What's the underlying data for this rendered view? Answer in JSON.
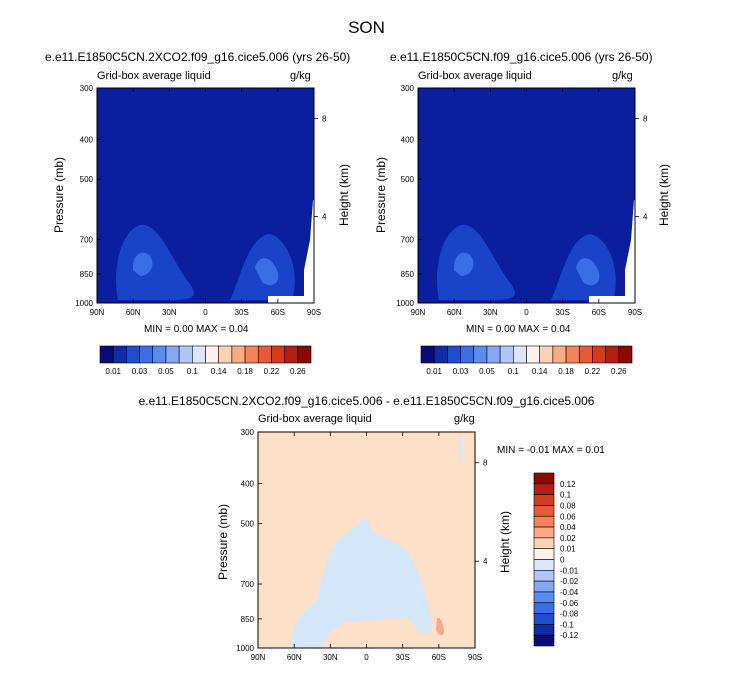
{
  "season": "SON",
  "colors": {
    "base_navy": "#0b1f9e",
    "contour_mid": "#1a44c8",
    "contour_high": "#3a6ee6",
    "diff_pos": "#fde0c8",
    "diff_neg": "#d4e8fa",
    "diff_hot": "#f5a98a"
  },
  "panels": {
    "left": {
      "title": "e.e11.E1850C5CN.2XCO2.f09_g16.cice5.006 (yrs 26-50)",
      "variable": "Grid-box average liquid",
      "units": "g/kg",
      "ylabel": "Pressure (mb)",
      "ylabel2": "Height (km)",
      "stats": "MIN =   0.00  MAX =   0.04"
    },
    "right": {
      "title": "e.e11.E1850C5CN.f09_g16.cice5.006 (yrs 26-50)",
      "variable": "Grid-box average liquid",
      "units": "g/kg",
      "ylabel": "Pressure (mb)",
      "ylabel2": "Height (km)",
      "stats": "MIN =   0.00  MAX =   0.04"
    },
    "diff": {
      "title": "e.e11.E1850C5CN.2XCO2.f09_g16.cice5.006 - e.e11.E1850C5CN.f09_g16.cice5.006",
      "variable": "Grid-box average liquid",
      "units": "g/kg",
      "ylabel": "Pressure (mb)",
      "ylabel2": "Height (km)",
      "stats": "MIN =  -0.01  MAX =   0.01"
    }
  },
  "chart_data": [
    {
      "type": "heatmap",
      "title": "e.e11.E1850C5CN.2XCO2.f09_g16.cice5.006 (yrs 26-50)",
      "subtitle": "Grid-box average liquid",
      "units": "g/kg",
      "xlabel": "",
      "ylabel": "Pressure (mb)",
      "ylabel_right": "Height (km)",
      "x_ticks": [
        "90N",
        "60N",
        "30N",
        "0",
        "30S",
        "60S",
        "90S"
      ],
      "y_ticks": [
        300,
        400,
        500,
        700,
        850,
        1000
      ],
      "y_right_ticks": [
        8,
        4
      ],
      "min": 0.0,
      "max": 0.04,
      "features": [
        {
          "lat": "~55N",
          "pressure": 850,
          "level": "0.03"
        },
        {
          "lat": "~50S",
          "pressure": 850,
          "level": "0.04"
        }
      ]
    },
    {
      "type": "heatmap",
      "title": "e.e11.E1850C5CN.f09_g16.cice5.006 (yrs 26-50)",
      "subtitle": "Grid-box average liquid",
      "units": "g/kg",
      "xlabel": "",
      "ylabel": "Pressure (mb)",
      "ylabel_right": "Height (km)",
      "x_ticks": [
        "90N",
        "60N",
        "30N",
        "0",
        "30S",
        "60S",
        "90S"
      ],
      "y_ticks": [
        300,
        400,
        500,
        700,
        850,
        1000
      ],
      "y_right_ticks": [
        8,
        4
      ],
      "min": 0.0,
      "max": 0.04,
      "features": [
        {
          "lat": "~55N",
          "pressure": 850,
          "level": "0.03"
        },
        {
          "lat": "~50S",
          "pressure": 850,
          "level": "0.04"
        }
      ]
    },
    {
      "type": "heatmap",
      "title": "e.e11.E1850C5CN.2XCO2.f09_g16.cice5.006 - e.e11.E1850C5CN.f09_g16.cice5.006",
      "subtitle": "Grid-box average liquid",
      "units": "g/kg",
      "xlabel": "",
      "ylabel": "Pressure (mb)",
      "ylabel_right": "Height (km)",
      "x_ticks": [
        "90N",
        "60N",
        "30N",
        "0",
        "30S",
        "60S",
        "90S"
      ],
      "y_ticks": [
        300,
        400,
        500,
        700,
        850,
        1000
      ],
      "y_right_ticks": [
        8,
        4
      ],
      "min": -0.01,
      "max": 0.01
    }
  ],
  "colorbar_top": {
    "labels": [
      "0.01",
      "0.03",
      "0.05",
      "0.1",
      "0.14",
      "0.18",
      "0.22",
      "0.26"
    ],
    "colors": [
      "#0a0a78",
      "#102aa8",
      "#1e4ed0",
      "#3a6ee6",
      "#5a8cf0",
      "#84a8f4",
      "#b0c6f8",
      "#dce6fb",
      "#fdf2e8",
      "#fcd2b6",
      "#f9ab84",
      "#f4835a",
      "#e85a34",
      "#d43a1c",
      "#b42010",
      "#8a0a06"
    ]
  },
  "colorbar_diff": {
    "labels": [
      "0.12",
      "0.1",
      "0.08",
      "0.06",
      "0.04",
      "0.02",
      "0.01",
      "0",
      "-0.01",
      "-0.02",
      "-0.04",
      "-0.06",
      "-0.08",
      "-0.1",
      "-0.12"
    ],
    "colors": [
      "#8a0a06",
      "#b42010",
      "#d43a1c",
      "#e85a34",
      "#f4835a",
      "#f9ab84",
      "#fcd2b6",
      "#fdf2e8",
      "#dce8fa",
      "#b0c6f8",
      "#84a8f4",
      "#5a8cf0",
      "#3a6ee6",
      "#1e4ed0",
      "#102aa8",
      "#0a0a78"
    ]
  }
}
